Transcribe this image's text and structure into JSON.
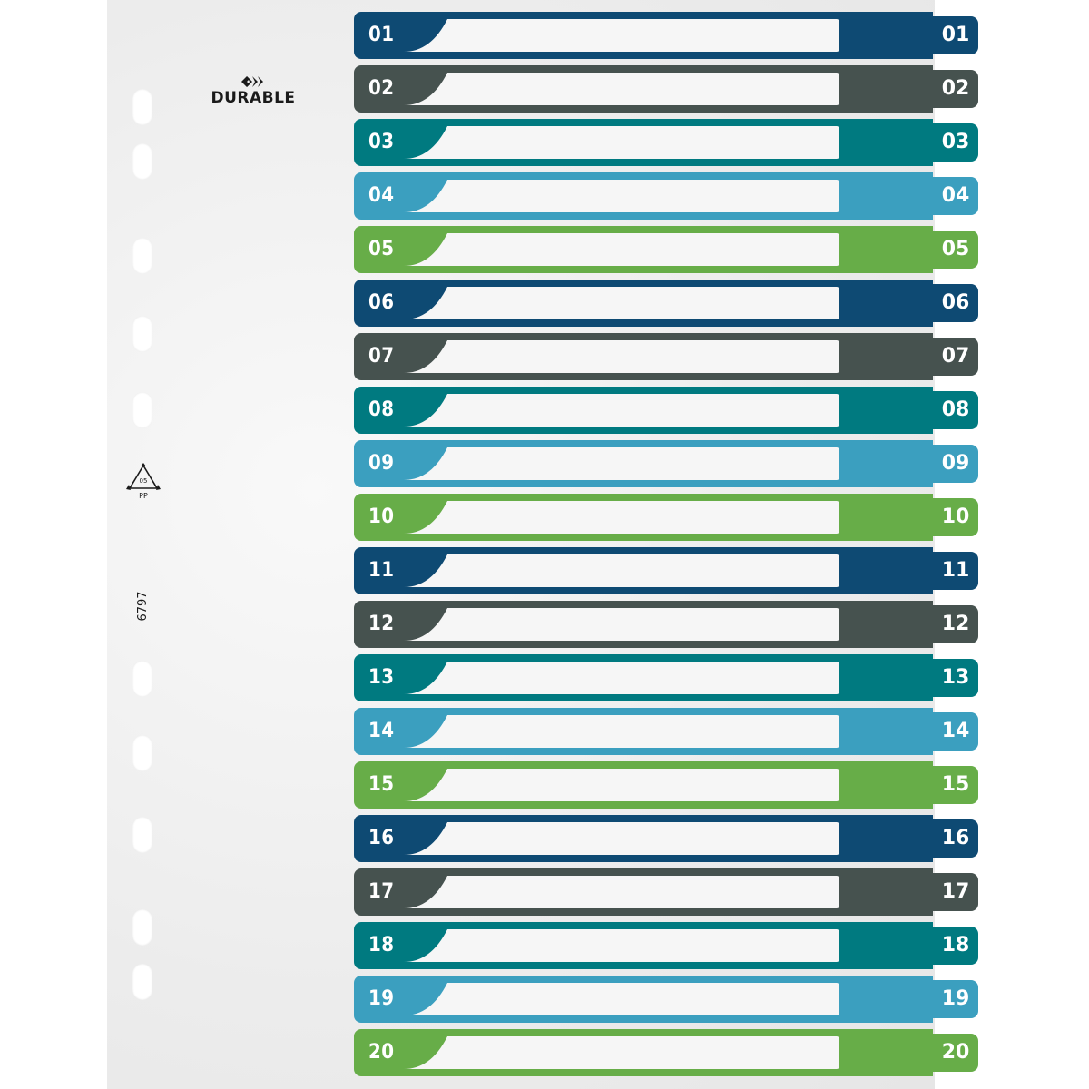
{
  "brand": {
    "name": "DURABLE"
  },
  "recycling": {
    "code": "05",
    "material": "PP"
  },
  "article_number": "6797",
  "colors": {
    "navy": "#0e4a73",
    "slate": "#46524f",
    "teal": "#007a80",
    "sky": "#3b9fbf",
    "green": "#67ad48"
  },
  "tabs": [
    {
      "label": "01",
      "color": "#0e4a73"
    },
    {
      "label": "02",
      "color": "#46524f"
    },
    {
      "label": "03",
      "color": "#007a80"
    },
    {
      "label": "04",
      "color": "#3b9fbf"
    },
    {
      "label": "05",
      "color": "#67ad48"
    },
    {
      "label": "06",
      "color": "#0e4a73"
    },
    {
      "label": "07",
      "color": "#46524f"
    },
    {
      "label": "08",
      "color": "#007a80"
    },
    {
      "label": "09",
      "color": "#3b9fbf"
    },
    {
      "label": "10",
      "color": "#67ad48"
    },
    {
      "label": "11",
      "color": "#0e4a73"
    },
    {
      "label": "12",
      "color": "#46524f"
    },
    {
      "label": "13",
      "color": "#007a80"
    },
    {
      "label": "14",
      "color": "#3b9fbf"
    },
    {
      "label": "15",
      "color": "#67ad48"
    },
    {
      "label": "16",
      "color": "#0e4a73"
    },
    {
      "label": "17",
      "color": "#46524f"
    },
    {
      "label": "18",
      "color": "#007a80"
    },
    {
      "label": "19",
      "color": "#3b9fbf"
    },
    {
      "label": "20",
      "color": "#67ad48"
    }
  ]
}
